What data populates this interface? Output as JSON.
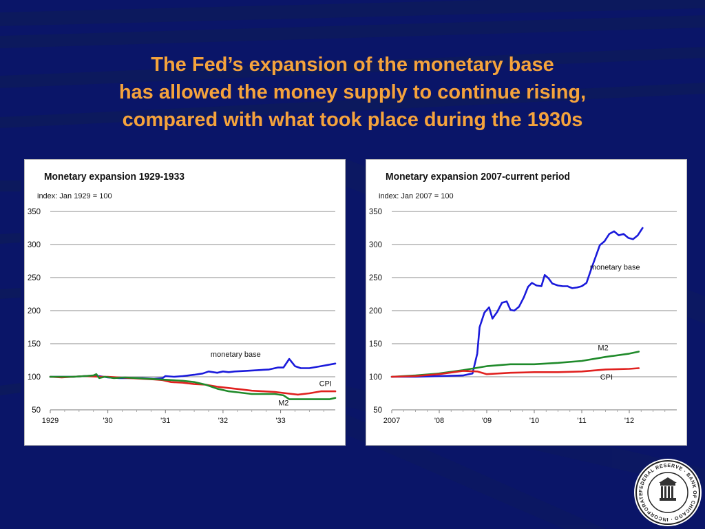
{
  "slide": {
    "title_lines": [
      "The Fed’s expansion of the monetary base",
      "has allowed the money supply to continue rising,",
      "compared with what took place during the 1930s"
    ],
    "colors": {
      "background": "#0a1568",
      "title": "#f5a33c"
    }
  },
  "logo": {
    "lettering": "FEDERAL RESERVE BANK OF CHICAGO · INCORPORATED MAY 18, 1914"
  },
  "chart_data": [
    {
      "type": "line",
      "title": "Monetary expansion 1929-1933",
      "subtitle": "index: Jan 1929 = 100",
      "xlabel": "",
      "ylabel": "",
      "xlim": [
        1929.0,
        1933.95
      ],
      "ylim": [
        50,
        350
      ],
      "yticks": [
        50,
        100,
        150,
        200,
        250,
        300,
        350
      ],
      "xticks": [
        {
          "value": 1929,
          "label": "1929"
        },
        {
          "value": 1930,
          "label": "'30"
        },
        {
          "value": 1931,
          "label": "'31"
        },
        {
          "value": 1932,
          "label": "'32"
        },
        {
          "value": 1933,
          "label": "'33"
        }
      ],
      "grid": true,
      "series": [
        {
          "name": "monetary base",
          "color": "#1a1adb",
          "label_pos": [
            1932.22,
            130
          ],
          "label_anchor": "middle",
          "points": [
            [
              1929.0,
              100
            ],
            [
              1929.2,
              100
            ],
            [
              1929.4,
              100
            ],
            [
              1929.6,
              101
            ],
            [
              1929.85,
              101
            ],
            [
              1930.0,
              99
            ],
            [
              1930.2,
              98
            ],
            [
              1930.4,
              98
            ],
            [
              1930.6,
              98
            ],
            [
              1930.8,
              97
            ],
            [
              1930.95,
              98
            ],
            [
              1931.0,
              101
            ],
            [
              1931.15,
              100
            ],
            [
              1931.3,
              101
            ],
            [
              1931.5,
              103
            ],
            [
              1931.65,
              105
            ],
            [
              1931.75,
              108
            ],
            [
              1931.9,
              106
            ],
            [
              1932.0,
              108
            ],
            [
              1932.1,
              107
            ],
            [
              1932.2,
              108
            ],
            [
              1932.4,
              109
            ],
            [
              1932.6,
              110
            ],
            [
              1932.8,
              111
            ],
            [
              1932.95,
              114
            ],
            [
              1933.05,
              114
            ],
            [
              1933.15,
              127
            ],
            [
              1933.25,
              116
            ],
            [
              1933.35,
              113
            ],
            [
              1933.5,
              113
            ],
            [
              1933.7,
              116
            ],
            [
              1933.95,
              120
            ]
          ]
        },
        {
          "name": "CPI",
          "color": "#e0211f",
          "label_pos": [
            1933.78,
            86
          ],
          "label_anchor": "middle",
          "points": [
            [
              1929.0,
              100
            ],
            [
              1929.2,
              99
            ],
            [
              1929.4,
              100
            ],
            [
              1929.6,
              101
            ],
            [
              1929.85,
              100
            ],
            [
              1930.0,
              100
            ],
            [
              1930.2,
              99
            ],
            [
              1930.4,
              98
            ],
            [
              1930.6,
              97
            ],
            [
              1930.8,
              96
            ],
            [
              1930.95,
              95
            ],
            [
              1931.1,
              92
            ],
            [
              1931.3,
              91
            ],
            [
              1931.5,
              89
            ],
            [
              1931.7,
              88
            ],
            [
              1931.9,
              85
            ],
            [
              1932.1,
              83
            ],
            [
              1932.3,
              81
            ],
            [
              1932.5,
              79
            ],
            [
              1932.7,
              78
            ],
            [
              1932.9,
              77
            ],
            [
              1933.1,
              75
            ],
            [
              1933.3,
              73
            ],
            [
              1933.5,
              75
            ],
            [
              1933.7,
              78
            ],
            [
              1933.95,
              78
            ]
          ]
        },
        {
          "name": "M2",
          "color": "#1f8a2a",
          "label_pos": [
            1933.05,
            57
          ],
          "label_anchor": "middle",
          "points": [
            [
              1929.0,
              100
            ],
            [
              1929.2,
              100
            ],
            [
              1929.4,
              100
            ],
            [
              1929.6,
              101
            ],
            [
              1929.75,
              102
            ],
            [
              1929.8,
              104
            ],
            [
              1929.85,
              98
            ],
            [
              1929.95,
              100
            ],
            [
              1930.1,
              98
            ],
            [
              1930.3,
              99
            ],
            [
              1930.5,
              98
            ],
            [
              1930.7,
              97
            ],
            [
              1930.9,
              96
            ],
            [
              1931.1,
              95
            ],
            [
              1931.3,
              94
            ],
            [
              1931.5,
              92
            ],
            [
              1931.7,
              88
            ],
            [
              1931.9,
              82
            ],
            [
              1932.1,
              78
            ],
            [
              1932.3,
              76
            ],
            [
              1932.5,
              74
            ],
            [
              1932.7,
              74
            ],
            [
              1932.9,
              74
            ],
            [
              1933.05,
              72
            ],
            [
              1933.15,
              66
            ],
            [
              1933.3,
              66
            ],
            [
              1933.5,
              66
            ],
            [
              1933.7,
              66
            ],
            [
              1933.85,
              66
            ],
            [
              1933.95,
              68
            ]
          ]
        }
      ]
    },
    {
      "type": "line",
      "title": "Monetary expansion 2007-current period",
      "subtitle": "index: Jan 2007 = 100",
      "xlabel": "",
      "ylabel": "",
      "xlim": [
        2007.0,
        2013.0
      ],
      "ylim": [
        50,
        350
      ],
      "yticks": [
        50,
        100,
        150,
        200,
        250,
        300,
        350
      ],
      "xticks": [
        {
          "value": 2007,
          "label": "2007"
        },
        {
          "value": 2008,
          "label": "'08"
        },
        {
          "value": 2009,
          "label": "'09"
        },
        {
          "value": 2010,
          "label": "'10"
        },
        {
          "value": 2011,
          "label": "'11"
        },
        {
          "value": 2012,
          "label": "'12"
        }
      ],
      "grid": true,
      "series": [
        {
          "name": "monetary base",
          "color": "#1a1adb",
          "label_pos": [
            2011.7,
            262
          ],
          "label_anchor": "middle",
          "points": [
            [
              2007.0,
              100
            ],
            [
              2007.5,
              100
            ],
            [
              2008.0,
              101
            ],
            [
              2008.5,
              102
            ],
            [
              2008.7,
              105
            ],
            [
              2008.8,
              135
            ],
            [
              2008.85,
              175
            ],
            [
              2008.95,
              197
            ],
            [
              2009.05,
              205
            ],
            [
              2009.12,
              188
            ],
            [
              2009.22,
              198
            ],
            [
              2009.32,
              212
            ],
            [
              2009.42,
              214
            ],
            [
              2009.5,
              201
            ],
            [
              2009.58,
              200
            ],
            [
              2009.68,
              206
            ],
            [
              2009.78,
              220
            ],
            [
              2009.87,
              236
            ],
            [
              2009.95,
              242
            ],
            [
              2010.05,
              238
            ],
            [
              2010.15,
              237
            ],
            [
              2010.22,
              254
            ],
            [
              2010.3,
              249
            ],
            [
              2010.38,
              241
            ],
            [
              2010.5,
              238
            ],
            [
              2010.6,
              237
            ],
            [
              2010.7,
              237
            ],
            [
              2010.8,
              234
            ],
            [
              2010.9,
              235
            ],
            [
              2011.0,
              237
            ],
            [
              2011.1,
              242
            ],
            [
              2011.2,
              263
            ],
            [
              2011.3,
              283
            ],
            [
              2011.38,
              299
            ],
            [
              2011.48,
              305
            ],
            [
              2011.58,
              316
            ],
            [
              2011.68,
              320
            ],
            [
              2011.78,
              314
            ],
            [
              2011.88,
              316
            ],
            [
              2011.98,
              310
            ],
            [
              2012.08,
              308
            ],
            [
              2012.18,
              314
            ],
            [
              2012.28,
              325
            ]
          ]
        },
        {
          "name": "M2",
          "color": "#1f8a2a",
          "label_pos": [
            2011.45,
            140
          ],
          "label_anchor": "middle",
          "points": [
            [
              2007.0,
              100
            ],
            [
              2007.5,
              102
            ],
            [
              2008.0,
              105
            ],
            [
              2008.5,
              110
            ],
            [
              2009.0,
              116
            ],
            [
              2009.5,
              119
            ],
            [
              2010.0,
              119
            ],
            [
              2010.5,
              121
            ],
            [
              2011.0,
              124
            ],
            [
              2011.5,
              130
            ],
            [
              2012.0,
              135
            ],
            [
              2012.2,
              138
            ]
          ]
        },
        {
          "name": "CPI",
          "color": "#e0211f",
          "label_pos": [
            2011.52,
            96
          ],
          "label_anchor": "middle",
          "points": [
            [
              2007.0,
              100
            ],
            [
              2007.5,
              101
            ],
            [
              2008.0,
              104
            ],
            [
              2008.5,
              109
            ],
            [
              2008.8,
              108
            ],
            [
              2009.0,
              104
            ],
            [
              2009.5,
              106
            ],
            [
              2010.0,
              107
            ],
            [
              2010.5,
              107
            ],
            [
              2011.0,
              108
            ],
            [
              2011.5,
              111
            ],
            [
              2012.0,
              112
            ],
            [
              2012.2,
              113
            ]
          ]
        }
      ]
    }
  ]
}
